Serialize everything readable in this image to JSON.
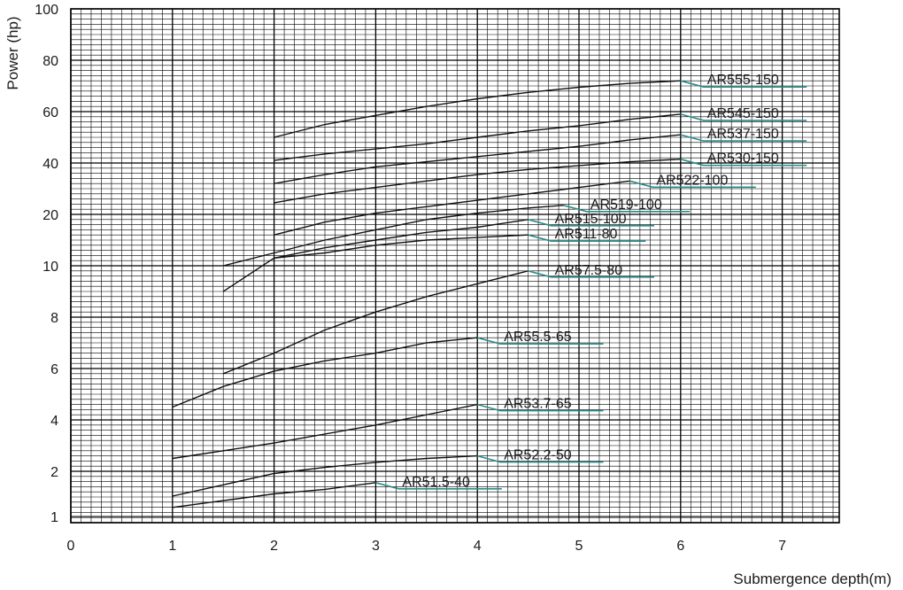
{
  "chart_data": {
    "type": "line",
    "title": "",
    "xlabel": "Submergence depth(m)",
    "ylabel": "Power (hp)",
    "xlim": [
      0,
      7.5
    ],
    "x_ticks": [
      0,
      1,
      2,
      3,
      4,
      5,
      6,
      7
    ],
    "y_scale": "nonuniform",
    "y_ticks": [
      1,
      2,
      4,
      6,
      8,
      10,
      20,
      40,
      60,
      80,
      100
    ],
    "grid": true,
    "legend": "none",
    "series": [
      {
        "name": "AR555-150",
        "x": [
          2,
          2.5,
          3,
          3.5,
          4,
          4.5,
          5,
          5.5,
          6
        ],
        "y": [
          50,
          55,
          58.5,
          62,
          65,
          67.5,
          69.5,
          71,
          72
        ]
      },
      {
        "name": "AR545-150",
        "x": [
          2,
          2.5,
          3,
          3.5,
          4,
          4.5,
          5,
          5.5,
          6
        ],
        "y": [
          41,
          43.5,
          45.5,
          47.5,
          50,
          52.5,
          54.5,
          57,
          59
        ]
      },
      {
        "name": "AR537-150",
        "x": [
          2,
          2.5,
          3,
          3.5,
          4,
          4.5,
          5,
          5.5,
          6
        ],
        "y": [
          32,
          35.5,
          38.5,
          40.5,
          42.5,
          44.5,
          46.5,
          49,
          51
        ]
      },
      {
        "name": "AR530-150",
        "x": [
          2,
          2.5,
          3,
          3.5,
          4,
          4.5,
          5,
          5.5,
          6
        ],
        "y": [
          24.5,
          28,
          30.5,
          33,
          35.5,
          37.5,
          39,
          40.5,
          41.5
        ]
      },
      {
        "name": "AR522-100",
        "x": [
          2,
          2.5,
          3,
          3.5,
          4,
          4.5,
          5,
          5.5
        ],
        "y": [
          16,
          18.5,
          20.5,
          23,
          25.5,
          28,
          30.5,
          33
        ]
      },
      {
        "name": "AR519-100",
        "x": [
          1.5,
          2,
          2.5,
          3,
          3.5,
          4,
          4.5,
          4.85
        ],
        "y": [
          10,
          12.5,
          15,
          17,
          19,
          20.5,
          22.5,
          23.5
        ]
      },
      {
        "name": "AR515-100",
        "x": [
          2,
          2.5,
          3,
          3.5,
          4,
          4.5
        ],
        "y": [
          11.5,
          13.5,
          15,
          16.5,
          17.5,
          19
        ]
      },
      {
        "name": "AR511-80",
        "x": [
          1.5,
          2,
          2.5,
          3,
          3.5,
          4,
          4.5
        ],
        "y": [
          9,
          11.5,
          12.5,
          14,
          15,
          15.5,
          16
        ]
      },
      {
        "name": "AR57.5-80",
        "x": [
          1.5,
          2,
          2.5,
          3,
          3.5,
          4,
          4.5
        ],
        "y": [
          5.8,
          6.6,
          7.5,
          8.2,
          8.8,
          9.3,
          9.8
        ]
      },
      {
        "name": "AR55.5-65",
        "x": [
          1,
          1.5,
          2,
          2.5,
          3,
          3.5,
          4
        ],
        "y": [
          4.5,
          5.3,
          5.9,
          6.3,
          6.6,
          7.0,
          7.2
        ]
      },
      {
        "name": "AR53.7-65",
        "x": [
          1,
          2,
          3,
          4
        ],
        "y": [
          2.5,
          3.1,
          3.8,
          4.6
        ]
      },
      {
        "name": "AR52.2-50",
        "x": [
          1,
          1.5,
          2,
          2.5,
          3,
          3.5,
          4
        ],
        "y": [
          1.45,
          1.7,
          1.95,
          2.15,
          2.35,
          2.5,
          2.6
        ]
      },
      {
        "name": "AR51.5-40",
        "x": [
          1,
          1.5,
          2,
          2.5,
          3
        ],
        "y": [
          1.2,
          1.35,
          1.5,
          1.6,
          1.75
        ]
      }
    ]
  }
}
